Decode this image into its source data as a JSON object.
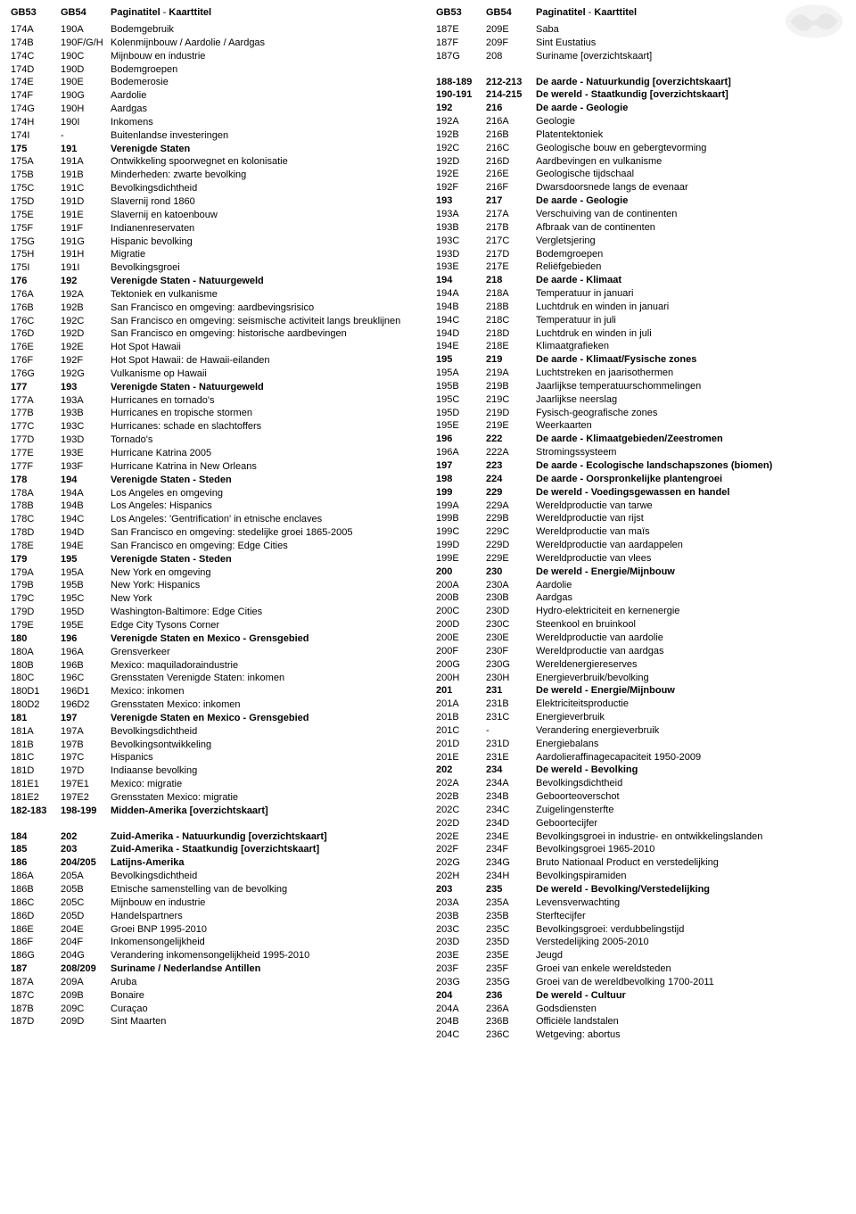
{
  "header": {
    "col1": "GB53",
    "col2": "GB54",
    "title_a": "Paginatitel",
    "title_sep": " - ",
    "title_b": "Kaarttitel"
  },
  "left": [
    {
      "c1": "174A",
      "c2": "190A",
      "t": "Bodemgebruik"
    },
    {
      "c1": "174B",
      "c2": "190F/G/H",
      "t": "Kolenmijnbouw / Aardolie / Aardgas"
    },
    {
      "c1": "174C",
      "c2": "190C",
      "t": "Mijnbouw en industrie"
    },
    {
      "c1": "174D",
      "c2": "190D",
      "t": "Bodemgroepen"
    },
    {
      "c1": "174E",
      "c2": "190E",
      "t": "Bodemerosie"
    },
    {
      "c1": "174F",
      "c2": "190G",
      "t": "Aardolie"
    },
    {
      "c1": "174G",
      "c2": "190H",
      "t": "Aardgas"
    },
    {
      "c1": "174H",
      "c2": "190I",
      "t": "Inkomens"
    },
    {
      "c1": "174I",
      "c2": "-",
      "t": "Buitenlandse investeringen"
    },
    {
      "c1": "175",
      "c2": "191",
      "t": "Verenigde Staten",
      "b": true
    },
    {
      "c1": "175A",
      "c2": "191A",
      "t": "Ontwikkeling spoorwegnet en kolonisatie"
    },
    {
      "c1": "175B",
      "c2": "191B",
      "t": "Minderheden: zwarte bevolking"
    },
    {
      "c1": "175C",
      "c2": "191C",
      "t": "Bevolkingsdichtheid"
    },
    {
      "c1": "175D",
      "c2": "191D",
      "t": "Slavernij rond 1860"
    },
    {
      "c1": "175E",
      "c2": "191E",
      "t": "Slavernij en katoenbouw"
    },
    {
      "c1": "175F",
      "c2": "191F",
      "t": "Indianenreservaten"
    },
    {
      "c1": "175G",
      "c2": "191G",
      "t": "Hispanic bevolking"
    },
    {
      "c1": "175H",
      "c2": "191H",
      "t": "Migratie"
    },
    {
      "c1": "175I",
      "c2": "191I",
      "t": "Bevolkingsgroei"
    },
    {
      "c1": "176",
      "c2": "192",
      "t": "Verenigde Staten - Natuurgeweld",
      "b": true
    },
    {
      "c1": "176A",
      "c2": "192A",
      "t": "Tektoniek en vulkanisme"
    },
    {
      "c1": "176B",
      "c2": "192B",
      "t": "San Francisco en omgeving: aardbevingsrisico"
    },
    {
      "c1": "176C",
      "c2": "192C",
      "t": "San Francisco en omgeving: seismische activiteit langs breuklijnen"
    },
    {
      "c1": "176D",
      "c2": "192D",
      "t": "San Francisco en omgeving: historische aardbevingen"
    },
    {
      "c1": "176E",
      "c2": "192E",
      "t": "Hot Spot Hawaii"
    },
    {
      "c1": "176F",
      "c2": "192F",
      "t": "Hot Spot Hawaii: de Hawaii-eilanden"
    },
    {
      "c1": "176G",
      "c2": "192G",
      "t": "Vulkanisme op Hawaii"
    },
    {
      "c1": "177",
      "c2": "193",
      "t": "Verenigde Staten - Natuurgeweld",
      "b": true
    },
    {
      "c1": "177A",
      "c2": "193A",
      "t": "Hurricanes en tornado's"
    },
    {
      "c1": "177B",
      "c2": "193B",
      "t": "Hurricanes en tropische stormen"
    },
    {
      "c1": "177C",
      "c2": "193C",
      "t": "Hurricanes: schade en slachtoffers"
    },
    {
      "c1": "177D",
      "c2": "193D",
      "t": "Tornado's"
    },
    {
      "c1": "177E",
      "c2": "193E",
      "t": "Hurricane Katrina 2005"
    },
    {
      "c1": "177F",
      "c2": "193F",
      "t": "Hurricane Katrina in New Orleans"
    },
    {
      "c1": "178",
      "c2": "194",
      "t": "Verenigde Staten - Steden",
      "b": true
    },
    {
      "c1": "178A",
      "c2": "194A",
      "t": "Los Angeles en omgeving"
    },
    {
      "c1": "178B",
      "c2": "194B",
      "t": "Los Angeles: Hispanics"
    },
    {
      "c1": "178C",
      "c2": "194C",
      "t": "Los Angeles: 'Gentrification' in etnische enclaves"
    },
    {
      "c1": "178D",
      "c2": "194D",
      "t": "San Francisco en omgeving: stedelijke groei 1865-2005"
    },
    {
      "c1": "178E",
      "c2": "194E",
      "t": "San Francisco en omgeving: Edge Cities"
    },
    {
      "c1": "179",
      "c2": "195",
      "t": "Verenigde Staten - Steden",
      "b": true
    },
    {
      "c1": "179A",
      "c2": "195A",
      "t": "New York en omgeving"
    },
    {
      "c1": "179B",
      "c2": "195B",
      "t": "New York: Hispanics"
    },
    {
      "c1": "179C",
      "c2": "195C",
      "t": "New York"
    },
    {
      "c1": "179D",
      "c2": "195D",
      "t": "Washington-Baltimore: Edge Cities"
    },
    {
      "c1": "179E",
      "c2": "195E",
      "t": "Edge City Tysons Corner"
    },
    {
      "c1": "180",
      "c2": "196",
      "t": "Verenigde Staten en Mexico - Grensgebied",
      "b": true
    },
    {
      "c1": "180A",
      "c2": "196A",
      "t": "Grensverkeer"
    },
    {
      "c1": "180B",
      "c2": "196B",
      "t": "Mexico: maquiladoraindustrie"
    },
    {
      "c1": "180C",
      "c2": "196C",
      "t": "Grensstaten Verenigde Staten: inkomen"
    },
    {
      "c1": "180D1",
      "c2": "196D1",
      "t": "Mexico: inkomen"
    },
    {
      "c1": "180D2",
      "c2": "196D2",
      "t": "Grensstaten Mexico: inkomen"
    },
    {
      "c1": "181",
      "c2": "197",
      "t": "Verenigde Staten en Mexico - Grensgebied",
      "b": true
    },
    {
      "c1": "181A",
      "c2": "197A",
      "t": "Bevolkingsdichtheid"
    },
    {
      "c1": "181B",
      "c2": "197B",
      "t": "Bevolkingsontwikkeling"
    },
    {
      "c1": "181C",
      "c2": "197C",
      "t": "Hispanics"
    },
    {
      "c1": "181D",
      "c2": "197D",
      "t": "Indiaanse bevolking"
    },
    {
      "c1": "181E1",
      "c2": "197E1",
      "t": "Mexico: migratie"
    },
    {
      "c1": "181E2",
      "c2": "197E2",
      "t": "Grensstaten Mexico: migratie"
    },
    {
      "c1": "182-183",
      "c2": "198-199",
      "t": "Midden-Amerika [overzichtskaart]",
      "b": true
    },
    {
      "spacer": true
    },
    {
      "c1": "184",
      "c2": "202",
      "t": "Zuid-Amerika - Natuurkundig [overzichtskaart]",
      "b": true
    },
    {
      "c1": "185",
      "c2": "203",
      "t": "Zuid-Amerika - Staatkundig [overzichtskaart]",
      "b": true
    },
    {
      "c1": "186",
      "c2": "204/205",
      "t": "Latijns-Amerika",
      "b": true
    },
    {
      "c1": "186A",
      "c2": "205A",
      "t": "Bevolkingsdichtheid"
    },
    {
      "c1": "186B",
      "c2": "205B",
      "t": "Etnische samenstelling van de bevolking"
    },
    {
      "c1": "186C",
      "c2": "205C",
      "t": "Mijnbouw en industrie"
    },
    {
      "c1": "186D",
      "c2": "205D",
      "t": "Handelspartners"
    },
    {
      "c1": "186E",
      "c2": "204E",
      "t": "Groei BNP 1995-2010"
    },
    {
      "c1": "186F",
      "c2": "204F",
      "t": "Inkomensongelijkheid"
    },
    {
      "c1": "186G",
      "c2": "204G",
      "t": "Verandering inkomensongelijkheid 1995-2010"
    },
    {
      "c1": "187",
      "c2": "208/209",
      "t": "Suriname / Nederlandse Antillen",
      "b": true
    },
    {
      "c1": "187A",
      "c2": "209A",
      "t": "Aruba"
    },
    {
      "c1": "187C",
      "c2": "209B",
      "t": "Bonaire"
    },
    {
      "c1": "187B",
      "c2": "209C",
      "t": "Curaçao"
    },
    {
      "c1": "187D",
      "c2": "209D",
      "t": "Sint Maarten"
    }
  ],
  "right": [
    {
      "c1": "187E",
      "c2": "209E",
      "t": "Saba"
    },
    {
      "c1": "187F",
      "c2": "209F",
      "t": "Sint Eustatius"
    },
    {
      "c1": "187G",
      "c2": "208",
      "t": "Suriname [overzichtskaart]"
    },
    {
      "spacer": true
    },
    {
      "c1": "188-189",
      "c2": "212-213",
      "t": "De aarde - Natuurkundig [overzichtskaart]",
      "b": true
    },
    {
      "c1": "190-191",
      "c2": "214-215",
      "t": "De wereld - Staatkundig [overzichtskaart]",
      "b": true
    },
    {
      "c1": "192",
      "c2": "216",
      "t": "De aarde - Geologie",
      "b": true
    },
    {
      "c1": "192A",
      "c2": "216A",
      "t": "Geologie"
    },
    {
      "c1": "192B",
      "c2": "216B",
      "t": "Platentektoniek"
    },
    {
      "c1": "192C",
      "c2": "216C",
      "t": "Geologische bouw en gebergtevorming"
    },
    {
      "c1": "192D",
      "c2": "216D",
      "t": "Aardbevingen en vulkanisme"
    },
    {
      "c1": "192E",
      "c2": "216E",
      "t": "Geologische tijdschaal"
    },
    {
      "c1": "192F",
      "c2": "216F",
      "t": "Dwarsdoorsnede langs de evenaar"
    },
    {
      "c1": "193",
      "c2": "217",
      "t": "De aarde - Geologie",
      "b": true
    },
    {
      "c1": "193A",
      "c2": "217A",
      "t": "Verschuiving van de continenten"
    },
    {
      "c1": "193B",
      "c2": "217B",
      "t": "Afbraak van de continenten"
    },
    {
      "c1": "193C",
      "c2": "217C",
      "t": "Vergletsjering"
    },
    {
      "c1": "193D",
      "c2": "217D",
      "t": "Bodemgroepen"
    },
    {
      "c1": "193E",
      "c2": "217E",
      "t": "Reliëfgebieden"
    },
    {
      "c1": "194",
      "c2": "218",
      "t": "De aarde - Klimaat",
      "b": true
    },
    {
      "c1": "194A",
      "c2": "218A",
      "t": "Temperatuur in januari"
    },
    {
      "c1": "194B",
      "c2": "218B",
      "t": "Luchtdruk en winden in januari"
    },
    {
      "c1": "194C",
      "c2": "218C",
      "t": "Temperatuur in juli"
    },
    {
      "c1": "194D",
      "c2": "218D",
      "t": "Luchtdruk en winden in juli"
    },
    {
      "c1": "194E",
      "c2": "218E",
      "t": "Klimaatgrafieken"
    },
    {
      "c1": "195",
      "c2": "219",
      "t": "De aarde - Klimaat/Fysische zones",
      "b": true
    },
    {
      "c1": "195A",
      "c2": "219A",
      "t": "Luchtstreken en jaarisothermen"
    },
    {
      "c1": "195B",
      "c2": "219B",
      "t": "Jaarlijkse temperatuurschommelingen"
    },
    {
      "c1": "195C",
      "c2": "219C",
      "t": "Jaarlijkse neerslag"
    },
    {
      "c1": "195D",
      "c2": "219D",
      "t": "Fysisch-geografische zones"
    },
    {
      "c1": "195E",
      "c2": "219E",
      "t": "Weerkaarten"
    },
    {
      "c1": "196",
      "c2": "222",
      "t": "De aarde - Klimaatgebieden/Zeestromen",
      "b": true
    },
    {
      "c1": "196A",
      "c2": "222A",
      "t": "Stromingssysteem"
    },
    {
      "c1": "197",
      "c2": "223",
      "t": "De aarde - Ecologische landschapszones (biomen)",
      "b": true
    },
    {
      "c1": "198",
      "c2": "224",
      "t": "De aarde - Oorspronkelijke plantengroei",
      "b": true
    },
    {
      "c1": "199",
      "c2": "229",
      "t": "De wereld - Voedingsgewassen en handel",
      "b": true
    },
    {
      "c1": "199A",
      "c2": "229A",
      "t": "Wereldproductie van tarwe"
    },
    {
      "c1": "199B",
      "c2": "229B",
      "t": "Wereldproductie van rijst"
    },
    {
      "c1": "199C",
      "c2": "229C",
      "t": "Wereldproductie van maïs"
    },
    {
      "c1": "199D",
      "c2": "229D",
      "t": "Wereldproductie van aardappelen"
    },
    {
      "c1": "199E",
      "c2": "229E",
      "t": "Wereldproductie van vlees"
    },
    {
      "c1": "200",
      "c2": "230",
      "t": "De wereld - Energie/Mijnbouw",
      "b": true
    },
    {
      "c1": "200A",
      "c2": "230A",
      "t": "Aardolie"
    },
    {
      "c1": "200B",
      "c2": "230B",
      "t": "Aardgas"
    },
    {
      "c1": "200C",
      "c2": "230D",
      "t": "Hydro-elektriciteit en kernenergie"
    },
    {
      "c1": "200D",
      "c2": "230C",
      "t": "Steenkool en bruinkool"
    },
    {
      "c1": "200E",
      "c2": "230E",
      "t": "Wereldproductie van aardolie"
    },
    {
      "c1": "200F",
      "c2": "230F",
      "t": "Wereldproductie van aardgas"
    },
    {
      "c1": "200G",
      "c2": "230G",
      "t": "Wereldenergiereserves"
    },
    {
      "c1": "200H",
      "c2": "230H",
      "t": "Energieverbruik/bevolking"
    },
    {
      "c1": "201",
      "c2": "231",
      "t": "De wereld - Energie/Mijnbouw",
      "b": true
    },
    {
      "c1": "201A",
      "c2": "231B",
      "t": "Elektriciteitsproductie"
    },
    {
      "c1": "201B",
      "c2": "231C",
      "t": "Energieverbruik"
    },
    {
      "c1": "201C",
      "c2": "-",
      "t": "Verandering energieverbruik"
    },
    {
      "c1": "201D",
      "c2": "231D",
      "t": "Energiebalans"
    },
    {
      "c1": "201E",
      "c2": "231E",
      "t": "Aardolieraffinagecapaciteit 1950-2009"
    },
    {
      "c1": "202",
      "c2": "234",
      "t": "De wereld - Bevolking",
      "b": true
    },
    {
      "c1": "202A",
      "c2": "234A",
      "t": "Bevolkingsdichtheid"
    },
    {
      "c1": "202B",
      "c2": "234B",
      "t": "Geboorteoverschot"
    },
    {
      "c1": "202C",
      "c2": "234C",
      "t": "Zuigelingensterfte"
    },
    {
      "c1": "202D",
      "c2": "234D",
      "t": "Geboortecijfer"
    },
    {
      "c1": "202E",
      "c2": "234E",
      "t": "Bevolkingsgroei in industrie- en ontwikkelingslanden"
    },
    {
      "c1": "202F",
      "c2": "234F",
      "t": "Bevolkingsgroei 1965-2010"
    },
    {
      "c1": "202G",
      "c2": "234G",
      "t": "Bruto Nationaal Product en verstedelijking"
    },
    {
      "c1": "202H",
      "c2": "234H",
      "t": "Bevolkingspiramiden"
    },
    {
      "c1": "203",
      "c2": "235",
      "t": "De wereld - Bevolking/Verstedelijking",
      "b": true
    },
    {
      "c1": "203A",
      "c2": "235A",
      "t": "Levensverwachting"
    },
    {
      "c1": "203B",
      "c2": "235B",
      "t": "Sterftecijfer"
    },
    {
      "c1": "203C",
      "c2": "235C",
      "t": "Bevolkingsgroei: verdubbelingstijd"
    },
    {
      "c1": "203D",
      "c2": "235D",
      "t": "Verstedelijking 2005-2010"
    },
    {
      "c1": "203E",
      "c2": "235E",
      "t": "Jeugd"
    },
    {
      "c1": "203F",
      "c2": "235F",
      "t": "Groei van enkele wereldsteden"
    },
    {
      "c1": "203G",
      "c2": "235G",
      "t": "Groei van de wereldbevolking 1700-2011"
    },
    {
      "c1": "204",
      "c2": "236",
      "t": "De wereld - Cultuur",
      "b": true
    },
    {
      "c1": "204A",
      "c2": "236A",
      "t": "Godsdiensten"
    },
    {
      "c1": "204B",
      "c2": "236B",
      "t": "Officiële landstalen"
    },
    {
      "c1": "204C",
      "c2": "236C",
      "t": "Wetgeving: abortus"
    }
  ]
}
